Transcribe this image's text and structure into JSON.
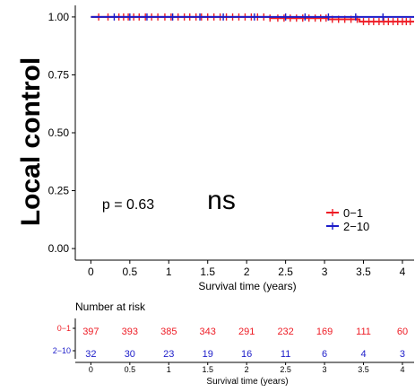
{
  "chart_data": {
    "type": "line",
    "ylabel": "Local control",
    "xlabel": "Survival time (years)",
    "xlim": [
      -0.2,
      4.15
    ],
    "ylim": [
      -0.05,
      1.05
    ],
    "x_ticks": [
      0,
      0.5,
      1,
      1.5,
      2,
      2.5,
      3,
      3.5,
      4
    ],
    "x_tick_labels": [
      "0",
      "0.5",
      "1",
      "1.5",
      "2",
      "2.5",
      "3",
      "3.5",
      "4"
    ],
    "y_ticks": [
      0,
      0.25,
      0.5,
      0.75,
      1
    ],
    "y_tick_labels": [
      "0.00",
      "0.25",
      "0.50",
      "0.75",
      "1.00"
    ],
    "grid": false,
    "legend_position": "right",
    "annotations": {
      "pvalue": "p = 0.63",
      "significance": "ns"
    },
    "series": [
      {
        "name": "0−1",
        "color": "#ee1c25",
        "steps": [
          [
            0,
            1.0
          ],
          [
            2.3,
            0.995
          ],
          [
            3.05,
            0.99
          ],
          [
            3.45,
            0.98
          ],
          [
            4.15,
            0.98
          ]
        ],
        "censor_x": [
          0.1,
          0.22,
          0.36,
          0.42,
          0.48,
          0.55,
          0.62,
          0.7,
          0.78,
          0.86,
          0.95,
          1.03,
          1.12,
          1.2,
          1.27,
          1.35,
          1.42,
          1.5,
          1.58,
          1.66,
          1.74,
          1.82,
          1.9,
          1.98,
          2.06,
          2.14,
          2.22,
          2.3,
          2.4,
          2.48,
          2.56,
          2.64,
          2.72,
          2.8,
          2.88,
          2.95,
          3.02,
          3.1,
          3.18,
          3.26,
          3.34,
          3.42,
          3.5,
          3.57,
          3.63,
          3.7,
          3.76,
          3.82,
          3.88,
          3.94,
          4.0,
          4.05,
          4.1
        ]
      },
      {
        "name": "2−10",
        "color": "#1c1cc9",
        "steps": [
          [
            0,
            1.0
          ],
          [
            4.15,
            1.0
          ]
        ],
        "censor_x": [
          0.3,
          0.5,
          0.72,
          1.05,
          1.4,
          1.7,
          2.1,
          2.5,
          2.75,
          3.05,
          3.4,
          3.75
        ]
      }
    ]
  },
  "risk_table": {
    "title": "Number at risk",
    "xlabel": "Survival time (years)",
    "tick_labels": [
      "0",
      "0.5",
      "1",
      "1.5",
      "2",
      "2.5",
      "3",
      "3.5",
      "4"
    ],
    "rows": [
      {
        "strata": "0−1",
        "color": "#ee1c25",
        "values": [
          397,
          393,
          385,
          343,
          291,
          232,
          169,
          111,
          60
        ]
      },
      {
        "strata": "2−10",
        "color": "#1c1cc9",
        "values": [
          32,
          30,
          23,
          19,
          16,
          11,
          6,
          4,
          3
        ]
      }
    ]
  }
}
